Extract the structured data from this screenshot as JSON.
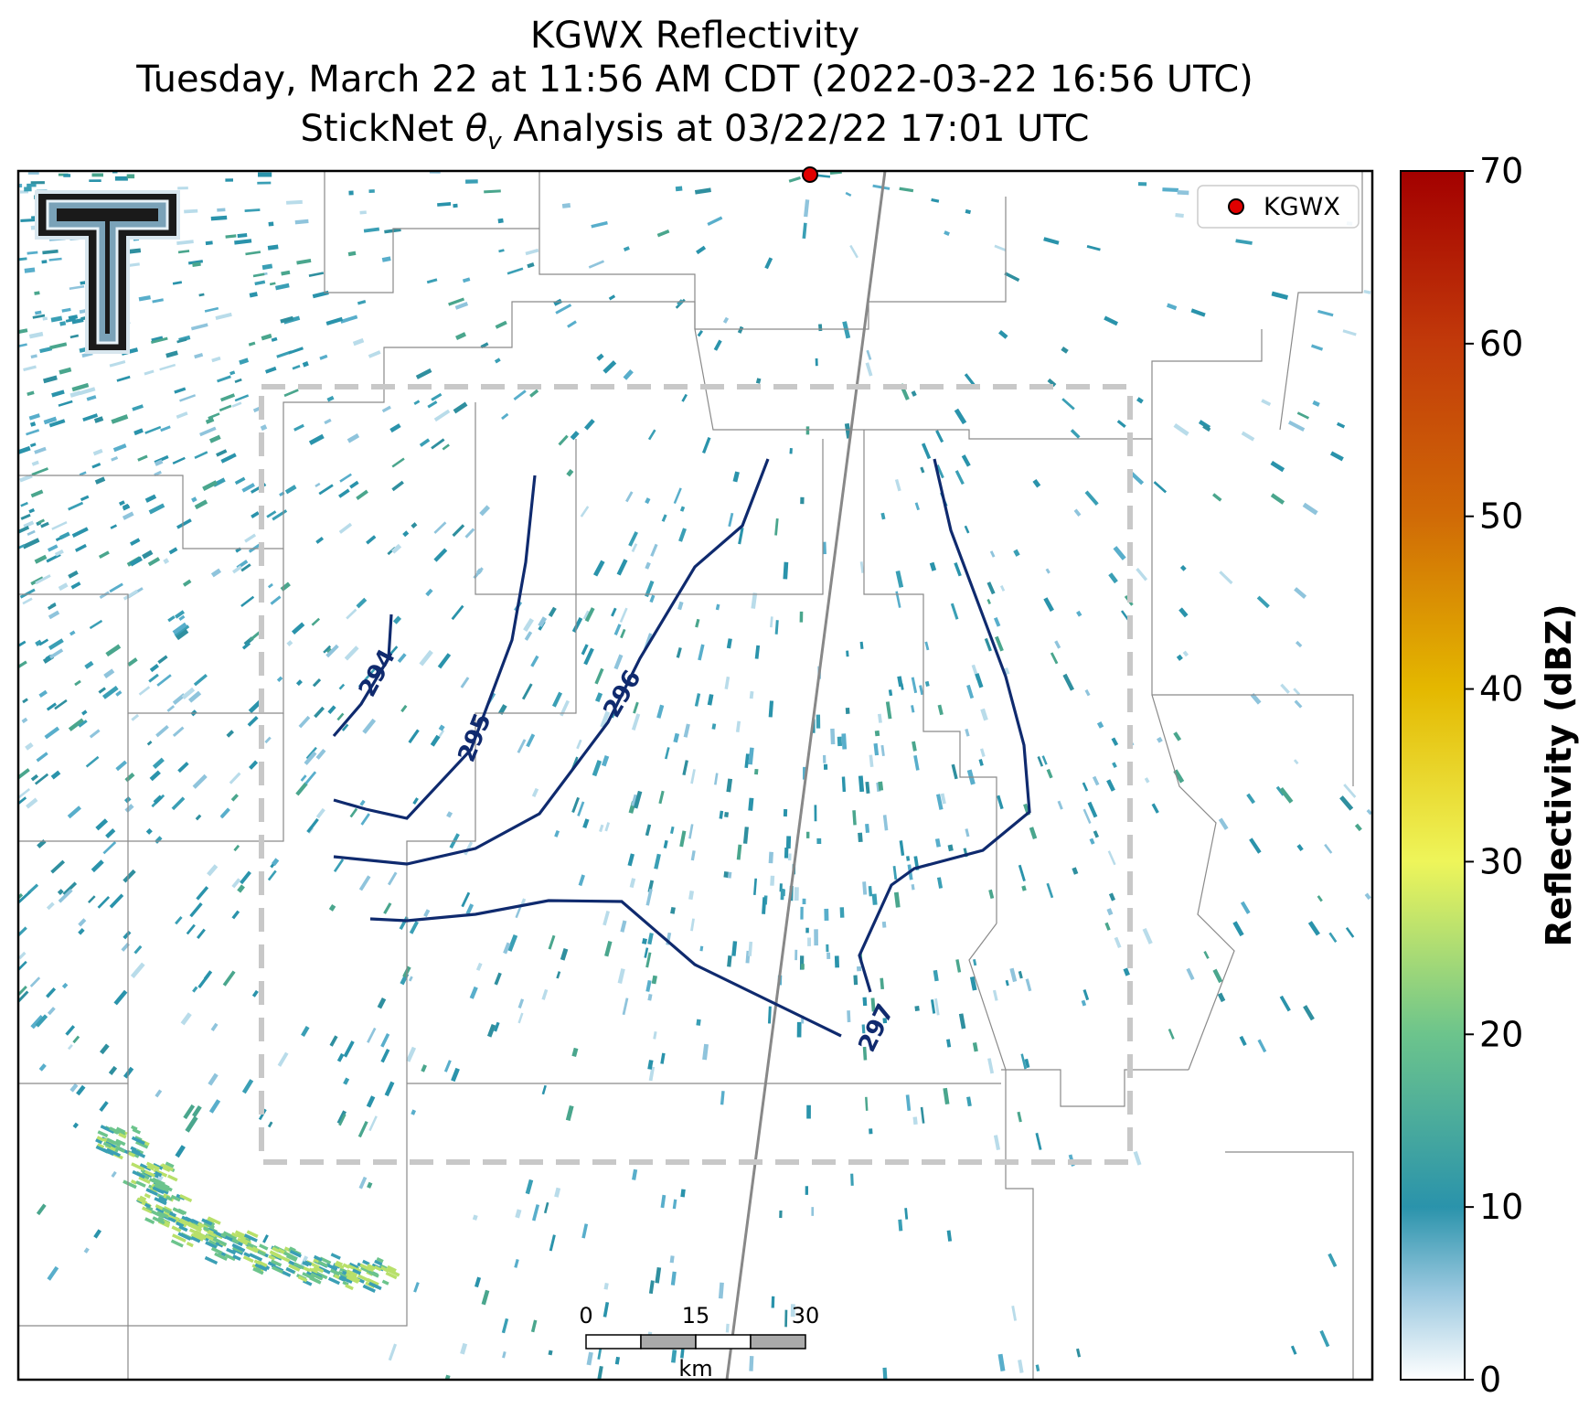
{
  "title": {
    "line1": "KGWX Reflectivity",
    "line2": "Tuesday, March 22 at 11:56 AM CDT (2022-03-22 16:56 UTC)",
    "line3_prefix": "StickNet ",
    "line3_symbol": "θ",
    "line3_sub": "v",
    "line3_suffix": " Analysis at 03/22/22 17:01 UTC"
  },
  "legend": {
    "label": "KGWX",
    "marker_color": "#e00000"
  },
  "colorbar": {
    "label": "Reflectivity (dBZ)",
    "min": 0,
    "max": 70,
    "ticks": [
      "0",
      "10",
      "20",
      "30",
      "40",
      "50",
      "60",
      "70"
    ],
    "stops": [
      {
        "v": 0,
        "c": "#ffffff"
      },
      {
        "v": 5,
        "c": "#9cc9e0"
      },
      {
        "v": 10,
        "c": "#2a93ab"
      },
      {
        "v": 20,
        "c": "#6cc48c"
      },
      {
        "v": 30,
        "c": "#eef55a"
      },
      {
        "v": 40,
        "c": "#e4b800"
      },
      {
        "v": 50,
        "c": "#d06a06"
      },
      {
        "v": 60,
        "c": "#c23a0a"
      },
      {
        "v": 70,
        "c": "#a30000"
      }
    ]
  },
  "contours": {
    "color": "#0f2a6e",
    "labels": [
      "294",
      "295",
      "296",
      "297"
    ]
  },
  "scalebar": {
    "ticks": [
      "0",
      "15",
      "30"
    ],
    "unit": "km"
  },
  "colors": {
    "analysis_box": "#c8c8c8",
    "county_lines": "#8a8a8a",
    "highway": "#888888"
  }
}
